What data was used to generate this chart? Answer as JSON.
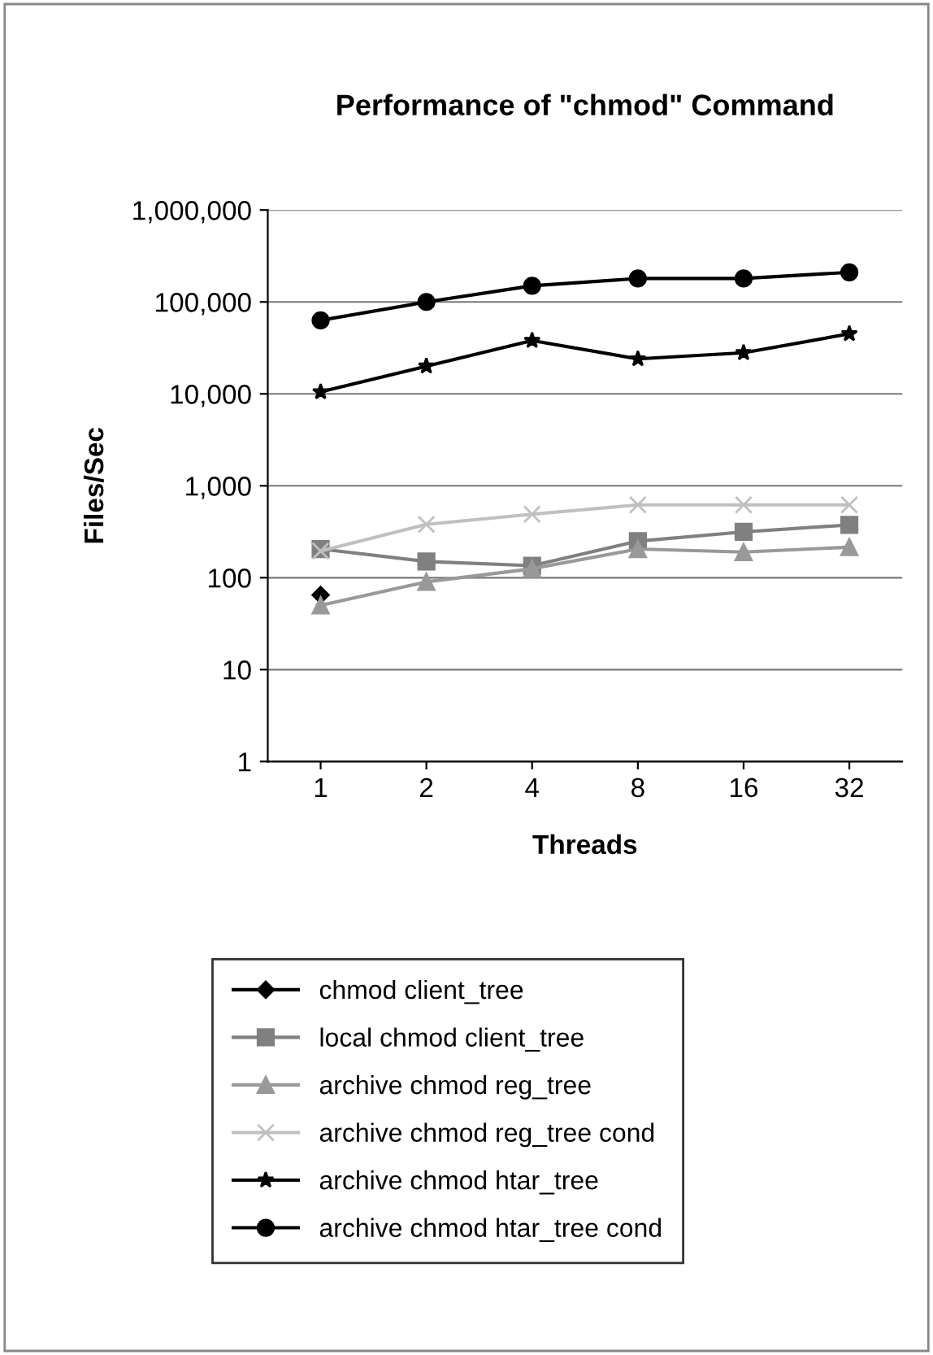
{
  "chart_data": {
    "type": "line",
    "title": "Performance of \"chmod\" Command",
    "xlabel": "Threads",
    "ylabel": "Files/Sec",
    "categories": [
      "1",
      "2",
      "4",
      "8",
      "16",
      "32"
    ],
    "log": "y",
    "ylim": [
      1,
      1000000
    ],
    "yticks": [
      1,
      10,
      {
        "value": 100,
        "label": "100"
      },
      {
        "value": 1000,
        "label": "1,000"
      },
      {
        "value": 10000,
        "label": "10,000"
      },
      {
        "value": 100000,
        "label": "100,000"
      },
      {
        "value": 1000000,
        "label": "1,000,000"
      }
    ],
    "grid": "y",
    "legend": "bottom",
    "series": [
      {
        "name": "chmod client_tree",
        "color": "#000000",
        "marker": "diamond",
        "values": [
          65,
          null,
          null,
          null,
          null,
          null
        ]
      },
      {
        "name": "local chmod client_tree",
        "color": "#808080",
        "marker": "square",
        "values": [
          205,
          150,
          135,
          250,
          315,
          375
        ]
      },
      {
        "name": "archive chmod reg_tree",
        "color": "#999999",
        "marker": "triangle",
        "values": [
          50,
          90,
          125,
          205,
          190,
          215
        ]
      },
      {
        "name": "archive chmod reg_tree cond",
        "color": "#c0c0c0",
        "marker": "cross",
        "values": [
          195,
          380,
          490,
          620,
          620,
          620
        ]
      },
      {
        "name": "archive chmod htar_tree",
        "color": "#000000",
        "marker": "star",
        "values": [
          10500,
          20000,
          38000,
          24000,
          28000,
          45000
        ]
      },
      {
        "name": "archive chmod htar_tree cond",
        "color": "#000000",
        "marker": "circle",
        "values": [
          63000,
          100000,
          150000,
          180000,
          180000,
          210000
        ]
      }
    ]
  }
}
